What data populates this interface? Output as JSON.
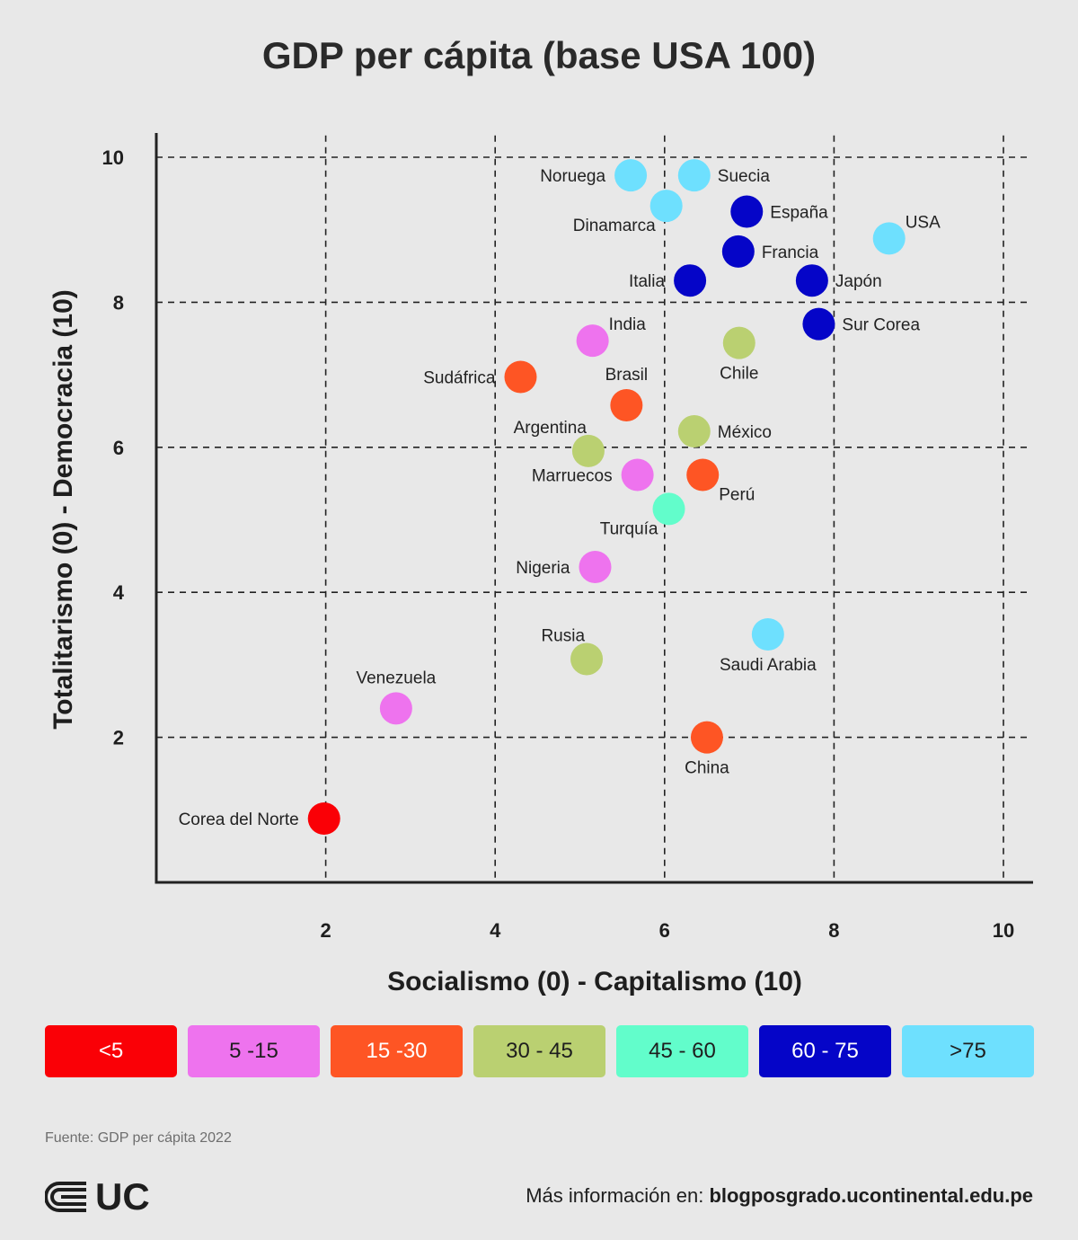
{
  "chart_data": {
    "type": "scatter",
    "title": "GDP per cápita (base USA 100)",
    "xlabel": "Socialismo (0) - Capitalismo (10)",
    "ylabel": "Totalitarismo (0) - Democracia (10)",
    "xlim": [
      0,
      10.3
    ],
    "ylim": [
      0,
      10.3
    ],
    "xticks": [
      2,
      4,
      6,
      8,
      10
    ],
    "yticks": [
      2,
      4,
      6,
      8,
      10
    ],
    "grid": true,
    "points": [
      {
        "name": "Noruega",
        "x": 5.6,
        "y": 9.75,
        "group": ">75",
        "label_pos": "left"
      },
      {
        "name": "Suecia",
        "x": 6.35,
        "y": 9.75,
        "group": ">75",
        "label_pos": "right"
      },
      {
        "name": "Dinamarca",
        "x": 6.02,
        "y": 9.33,
        "group": ">75",
        "label_pos": "below-left"
      },
      {
        "name": "España",
        "x": 6.97,
        "y": 9.25,
        "group": "60 - 75",
        "label_pos": "right"
      },
      {
        "name": "USA",
        "x": 8.65,
        "y": 8.88,
        "group": ">75",
        "label_pos": "above-right"
      },
      {
        "name": "Francia",
        "x": 6.87,
        "y": 8.7,
        "group": "60 - 75",
        "label_pos": "right"
      },
      {
        "name": "Italia",
        "x": 6.3,
        "y": 8.3,
        "group": "60 - 75",
        "label_pos": "left"
      },
      {
        "name": "Japón",
        "x": 7.74,
        "y": 8.3,
        "group": "60 - 75",
        "label_pos": "right"
      },
      {
        "name": "Sur Corea",
        "x": 7.82,
        "y": 7.7,
        "group": "60 - 75",
        "label_pos": "right"
      },
      {
        "name": "India",
        "x": 5.15,
        "y": 7.47,
        "group": "5 -15",
        "label_pos": "above-right"
      },
      {
        "name": "Chile",
        "x": 6.88,
        "y": 7.44,
        "group": "30 - 45",
        "label_pos": "below"
      },
      {
        "name": "Sudáfrica",
        "x": 4.3,
        "y": 6.97,
        "group": "15 -30",
        "label_pos": "left"
      },
      {
        "name": "Brasil",
        "x": 5.55,
        "y": 6.58,
        "group": "15 -30",
        "label_pos": "above"
      },
      {
        "name": "México",
        "x": 6.35,
        "y": 6.22,
        "group": "30 - 45",
        "label_pos": "right"
      },
      {
        "name": "Argentina",
        "x": 5.1,
        "y": 5.95,
        "group": "30 - 45",
        "label_pos": "above-left"
      },
      {
        "name": "Marruecos",
        "x": 5.68,
        "y": 5.62,
        "group": "5 -15",
        "label_pos": "left"
      },
      {
        "name": "Perú",
        "x": 6.45,
        "y": 5.62,
        "group": "15 -30",
        "label_pos": "below-right"
      },
      {
        "name": "Turquía",
        "x": 6.05,
        "y": 5.15,
        "group": "45 - 60",
        "label_pos": "below-left"
      },
      {
        "name": "Nigeria",
        "x": 5.18,
        "y": 4.35,
        "group": "5 -15",
        "label_pos": "left"
      },
      {
        "name": "Saudi Arabia",
        "x": 7.22,
        "y": 3.42,
        "group": ">75",
        "label_pos": "below"
      },
      {
        "name": "Rusia",
        "x": 5.08,
        "y": 3.08,
        "group": "30 - 45",
        "label_pos": "above-left"
      },
      {
        "name": "Venezuela",
        "x": 2.83,
        "y": 2.4,
        "group": "5 -15",
        "label_pos": "above"
      },
      {
        "name": "China",
        "x": 6.5,
        "y": 2.0,
        "group": "15 -30",
        "label_pos": "below"
      },
      {
        "name": "Corea del Norte",
        "x": 1.98,
        "y": 0.88,
        "group": "<5",
        "label_pos": "left"
      }
    ],
    "legend": [
      {
        "label": "<5",
        "color": "#fa0006"
      },
      {
        "label": "5 -15",
        "color": "#ee73ee"
      },
      {
        "label": "15 -30",
        "color": "#fe5524"
      },
      {
        "label": "30 - 45",
        "color": "#bad071"
      },
      {
        "label": "45 - 60",
        "color": "#62fdcb"
      },
      {
        "label": "60 - 75",
        "color": "#0505c8"
      },
      {
        "label": ">75",
        "color": "#6ee0fe"
      }
    ]
  },
  "source": "Fuente: GDP per cápita 2022",
  "logo": {
    "text": "UC"
  },
  "footer": {
    "prefix": "Más información en:",
    "url": "blogposgrado.ucontinental.edu.pe"
  }
}
